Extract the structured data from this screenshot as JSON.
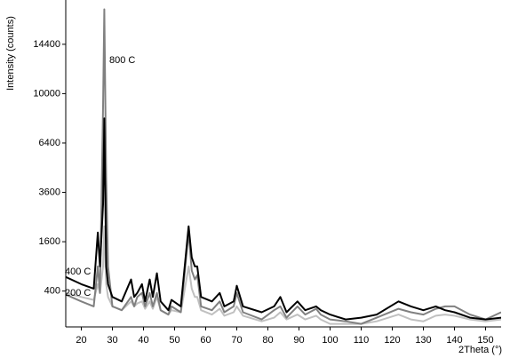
{
  "chart_data": {
    "type": "line",
    "x_label": "2Theta (°)",
    "y_label": "Intensity (counts)",
    "y_scale": "sqrt",
    "x": [
      15,
      20,
      24,
      25.3,
      26,
      27,
      27.4,
      28,
      28.6,
      30,
      33,
      36,
      37,
      38,
      39.5,
      40.5,
      42,
      43,
      44.3,
      45.5,
      48,
      49,
      52,
      54.5,
      55.5,
      56.5,
      57.3,
      58.5,
      62,
      64.5,
      66,
      69,
      70,
      72,
      78,
      82,
      84,
      86,
      89.5,
      92,
      95.5,
      97,
      100,
      105,
      110,
      115,
      122,
      126,
      130,
      134,
      137,
      140,
      145,
      150,
      155
    ],
    "series": [
      {
        "name": "200 C",
        "color": "#c0c0c0",
        "values": [
          370,
          310,
          270,
          520,
          370,
          900,
          2140,
          520,
          310,
          190,
          150,
          250,
          190,
          224,
          250,
          164,
          250,
          164,
          310,
          150,
          110,
          150,
          130,
          900,
          440,
          310,
          310,
          150,
          110,
          164,
          100,
          130,
          190,
          100,
          60,
          85,
          130,
          72,
          110,
          72,
          100,
          72,
          45,
          45,
          45,
          60,
          110,
          72,
          60,
          100,
          110,
          100,
          72,
          60,
          72
        ]
      },
      {
        "name": "800 C",
        "color": "#808080",
        "values": [
          345,
          250,
          190,
          900,
          370,
          9000,
          18000,
          4360,
          900,
          190,
          150,
          310,
          190,
          310,
          370,
          190,
          370,
          190,
          370,
          150,
          110,
          190,
          130,
          1910,
          800,
          610,
          700,
          190,
          150,
          250,
          130,
          190,
          370,
          130,
          72,
          150,
          190,
          85,
          190,
          110,
          164,
          110,
          72,
          60,
          45,
          85,
          164,
          130,
          110,
          164,
          190,
          190,
          110,
          72,
          130
        ]
      },
      {
        "name": "400 C",
        "color": "#000000",
        "values": [
          660,
          520,
          440,
          1910,
          900,
          3050,
          8100,
          900,
          520,
          310,
          250,
          610,
          310,
          370,
          520,
          250,
          610,
          310,
          740,
          250,
          150,
          270,
          190,
          2140,
          1130,
          900,
          900,
          310,
          250,
          370,
          190,
          250,
          490,
          190,
          130,
          190,
          310,
          130,
          250,
          150,
          190,
          150,
          110,
          72,
          85,
          110,
          250,
          190,
          150,
          190,
          150,
          130,
          85,
          72,
          85
        ]
      }
    ],
    "xlim": [
      15,
      155
    ],
    "xticks": [
      20,
      30,
      40,
      50,
      60,
      70,
      80,
      90,
      100,
      110,
      120,
      130,
      140,
      150
    ],
    "ylim": [
      30,
      18000
    ],
    "yticks": [
      400,
      1600,
      3600,
      6400,
      10000,
      14400
    ]
  }
}
